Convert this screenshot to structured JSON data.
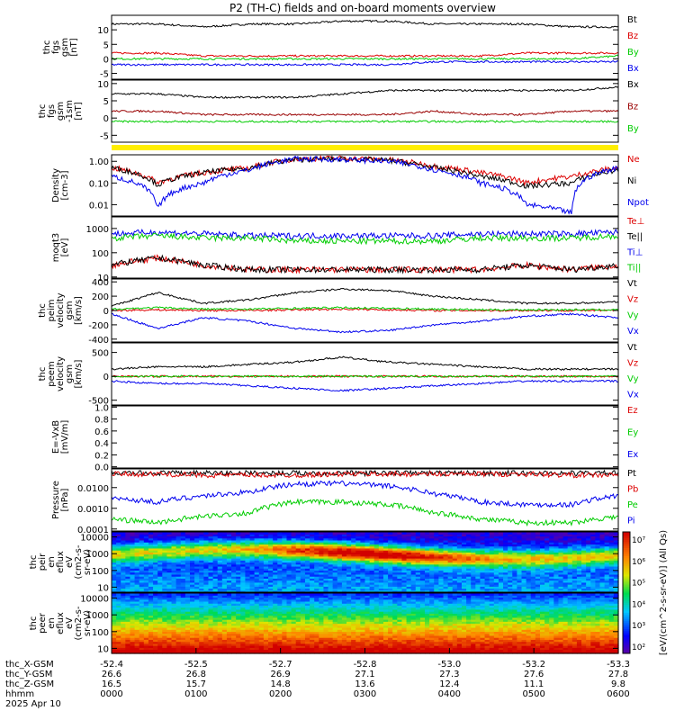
{
  "title": "P2 (TH-C) fields and on-board moments overview",
  "chart_data": [
    {
      "type": "line",
      "ylabel": [
        "thc",
        "fgs",
        "gsm",
        "[nT]"
      ],
      "ylim": [
        -7,
        15
      ],
      "yticks": [
        10,
        5,
        0,
        -5
      ],
      "yticklabels": [
        "10",
        "5",
        "0",
        "-5"
      ],
      "series": [
        {
          "name": "Bt",
          "color": "#000000",
          "values": [
            12,
            12,
            11,
            12,
            12,
            13,
            13,
            12,
            12,
            12,
            11,
            11
          ]
        },
        {
          "name": "Bz",
          "color": "#dd0000",
          "values": [
            2,
            2,
            1,
            1,
            1,
            1,
            1,
            1,
            1,
            2,
            2,
            2
          ]
        },
        {
          "name": "By",
          "color": "#00cc00",
          "values": [
            0,
            0,
            0,
            0,
            0,
            0,
            0,
            0,
            0,
            0,
            0,
            1
          ]
        },
        {
          "name": "Bx",
          "color": "#0000ee",
          "values": [
            -2,
            -2,
            -2,
            -2,
            -2,
            -2,
            -2,
            -1,
            -1,
            -1,
            -1,
            -1
          ]
        }
      ]
    },
    {
      "type": "line",
      "ylabel": [
        "thc",
        "fgs",
        "gsm",
        "-1sm",
        "[nT]"
      ],
      "ylim": [
        -7,
        11
      ],
      "yticks": [
        10,
        5,
        0,
        -5
      ],
      "yticklabels": [
        "10",
        "5",
        "0",
        "-5"
      ],
      "series": [
        {
          "name": "Bx",
          "color": "#000000",
          "values": [
            7,
            7,
            6,
            6,
            6,
            7,
            8,
            8,
            8,
            8,
            8,
            9
          ]
        },
        {
          "name": "Bz",
          "color": "#990000",
          "values": [
            2,
            2,
            1,
            1,
            1,
            1,
            1,
            2,
            1,
            1,
            2,
            2
          ]
        },
        {
          "name": "By",
          "color": "#00cc00",
          "values": [
            -1,
            -1,
            -1,
            -1,
            -1,
            -1,
            -1,
            -1,
            -1,
            -1,
            -1,
            -1
          ]
        }
      ]
    },
    {
      "type": "line",
      "scale": "log",
      "ylabel": [
        "Density",
        "[cm-3]"
      ],
      "ylim": [
        0.003,
        2
      ],
      "yticks": [
        1,
        0.1,
        0.01
      ],
      "yticklabels": [
        "1.00",
        "0.10",
        "0.01"
      ],
      "series": [
        {
          "name": "Ne",
          "color": "#dd0000",
          "values": [
            0.5,
            0.1,
            0.3,
            0.5,
            1.3,
            1.4,
            1.2,
            0.6,
            0.3,
            0.1,
            0.2,
            0.5
          ]
        },
        {
          "name": "Ni",
          "color": "#000000",
          "values": [
            0.5,
            0.08,
            0.3,
            0.5,
            1.2,
            1.3,
            1.1,
            0.5,
            0.2,
            0.07,
            0.1,
            0.4
          ]
        },
        {
          "name": "Npot",
          "color": "#0000ee",
          "values": [
            0.2,
            0.005,
            0.1,
            0.4,
            1.3,
            1.2,
            1.0,
            0.4,
            0.1,
            0.01,
            0.004,
            0.5
          ]
        }
      ]
    },
    {
      "type": "line",
      "scale": "log",
      "ylabel": [
        "moqt3",
        "[eV]"
      ],
      "ylim": [
        9,
        3000
      ],
      "yticks": [
        1000,
        100,
        10
      ],
      "yticklabels": [
        "1000",
        "100",
        "10"
      ],
      "series": [
        {
          "name": "Te⊥",
          "color": "#dd0000",
          "values": [
            30,
            60,
            30,
            20,
            20,
            20,
            20,
            20,
            20,
            30,
            20,
            30
          ]
        },
        {
          "name": "Te||",
          "color": "#000000",
          "values": [
            30,
            60,
            30,
            20,
            20,
            20,
            20,
            20,
            20,
            30,
            20,
            30
          ]
        },
        {
          "name": "Ti⊥",
          "color": "#0000ee",
          "values": [
            600,
            700,
            600,
            500,
            500,
            500,
            500,
            500,
            600,
            600,
            600,
            700
          ]
        },
        {
          "name": "Ti||",
          "color": "#00cc00",
          "values": [
            400,
            500,
            400,
            400,
            300,
            300,
            300,
            300,
            400,
            400,
            400,
            500
          ]
        }
      ]
    },
    {
      "type": "line",
      "ylabel": [
        "thc",
        "peim",
        "velocity",
        "gsm",
        "[km/s]"
      ],
      "ylim": [
        -440,
        440
      ],
      "yticks": [
        400,
        200,
        0,
        -200,
        -400
      ],
      "yticklabels": [
        "400",
        "200",
        "0",
        "-200",
        "-400"
      ],
      "series": [
        {
          "name": "Vt",
          "color": "#000000",
          "values": [
            60,
            250,
            100,
            150,
            250,
            300,
            280,
            200,
            150,
            100,
            100,
            120
          ]
        },
        {
          "name": "Vz",
          "color": "#dd0000",
          "values": [
            0,
            10,
            0,
            0,
            10,
            20,
            10,
            0,
            0,
            0,
            0,
            0
          ]
        },
        {
          "name": "Vy",
          "color": "#00cc00",
          "values": [
            20,
            40,
            20,
            20,
            30,
            40,
            30,
            20,
            10,
            10,
            10,
            10
          ]
        },
        {
          "name": "Vx",
          "color": "#0000ee",
          "values": [
            -50,
            -250,
            -100,
            -150,
            -250,
            -300,
            -280,
            -200,
            -150,
            -80,
            -50,
            -100
          ]
        }
      ]
    },
    {
      "type": "line",
      "ylabel": [
        "thc",
        "peem",
        "velocity",
        "gsm",
        "[km/s]"
      ],
      "ylim": [
        -600,
        700
      ],
      "yticks": [
        500,
        0,
        -500
      ],
      "yticklabels": [
        "500",
        "0",
        "-500"
      ],
      "series": [
        {
          "name": "Vt",
          "color": "#000000",
          "values": [
            150,
            200,
            200,
            250,
            300,
            400,
            300,
            250,
            200,
            150,
            150,
            150
          ]
        },
        {
          "name": "Vz",
          "color": "#dd0000",
          "values": [
            0,
            0,
            0,
            0,
            0,
            0,
            0,
            0,
            0,
            0,
            0,
            0
          ]
        },
        {
          "name": "Vy",
          "color": "#00cc00",
          "values": [
            0,
            0,
            0,
            0,
            0,
            0,
            0,
            0,
            0,
            0,
            0,
            0
          ]
        },
        {
          "name": "Vx",
          "color": "#0000ee",
          "values": [
            -100,
            -150,
            -150,
            -200,
            -250,
            -300,
            -250,
            -200,
            -150,
            -100,
            -100,
            -100
          ]
        }
      ]
    },
    {
      "type": "line",
      "ylabel": [
        "E=-VxB",
        "[mV/m]"
      ],
      "ylim": [
        -0.02,
        1.02
      ],
      "yticks": [
        1.0,
        0.8,
        0.6,
        0.4,
        0.2,
        0.0
      ],
      "yticklabels": [
        "1.0",
        "0.8",
        "0.6",
        "0.4",
        "0.2",
        "0.0"
      ],
      "series": [
        {
          "name": "Ez",
          "color": "#dd0000",
          "values": []
        },
        {
          "name": "Ey",
          "color": "#00cc00",
          "values": []
        },
        {
          "name": "Ex",
          "color": "#0000ee",
          "values": []
        }
      ]
    },
    {
      "type": "line",
      "scale": "log",
      "ylabel": [
        "Pressure",
        "[nPa]"
      ],
      "ylim": [
        8e-05,
        0.08
      ],
      "yticks": [
        0.01,
        0.001,
        0.0001
      ],
      "yticklabels": [
        "0.0100",
        "0.0010",
        "0.0001"
      ],
      "series": [
        {
          "name": "Pt",
          "color": "#000000",
          "values": [
            0.05,
            0.05,
            0.05,
            0.05,
            0.05,
            0.05,
            0.05,
            0.05,
            0.05,
            0.05,
            0.05,
            0.05
          ]
        },
        {
          "name": "Pb",
          "color": "#dd0000",
          "values": [
            0.045,
            0.045,
            0.04,
            0.04,
            0.04,
            0.045,
            0.045,
            0.045,
            0.045,
            0.045,
            0.04,
            0.04
          ]
        },
        {
          "name": "Pe",
          "color": "#00cc00",
          "values": [
            0.0003,
            0.0002,
            0.0004,
            0.0006,
            0.002,
            0.002,
            0.0015,
            0.0006,
            0.0003,
            0.0002,
            0.0002,
            0.0004
          ]
        },
        {
          "name": "Pi",
          "color": "#0000ee",
          "values": [
            0.003,
            0.002,
            0.004,
            0.006,
            0.015,
            0.016,
            0.012,
            0.005,
            0.002,
            0.0015,
            0.0015,
            0.004
          ]
        }
      ]
    },
    {
      "type": "heatmap",
      "scale": "log",
      "ylabel": [
        "thc",
        "peir",
        "en",
        "eflux",
        "eV",
        "(cm2-s-",
        "sr-eV)"
      ],
      "ylim": [
        5,
        20000
      ],
      "yticks": [
        10000,
        1000,
        100,
        10
      ],
      "yticklabels": [
        "10000",
        "1000",
        "100",
        "10"
      ]
    },
    {
      "type": "heatmap",
      "scale": "log",
      "ylabel": [
        "thc",
        "peer",
        "en",
        "eflux",
        "eV",
        "(cm2-s-",
        "sr-eV)"
      ],
      "ylim": [
        5,
        20000
      ],
      "yticks": [
        10000,
        1000,
        100,
        10
      ],
      "yticklabels": [
        "10000",
        "1000",
        "100",
        "10"
      ]
    }
  ],
  "colorbar": {
    "ticks": [
      "10⁷",
      "10⁶",
      "10⁵",
      "10⁴",
      "10³",
      "10²"
    ],
    "label": "[eV/(cm^2-s-sr-eV)] (All Qs)"
  },
  "xaxis": {
    "rows": [
      {
        "label": "thc_X-GSM",
        "values": [
          "-52.4",
          "-52.5",
          "-52.7",
          "-52.8",
          "-53.0",
          "-53.2",
          "-53.3"
        ]
      },
      {
        "label": "thc_Y-GSM",
        "values": [
          "26.6",
          "26.8",
          "26.9",
          "27.1",
          "27.3",
          "27.6",
          "27.8"
        ]
      },
      {
        "label": "thc_Z-GSM",
        "values": [
          "16.5",
          "15.7",
          "14.8",
          "13.6",
          "12.4",
          "11.1",
          "9.8"
        ]
      },
      {
        "label": "hhmm",
        "values": [
          "0000",
          "0100",
          "0200",
          "0300",
          "0400",
          "0500",
          "0600"
        ]
      }
    ],
    "date": "2025 Apr 10"
  }
}
